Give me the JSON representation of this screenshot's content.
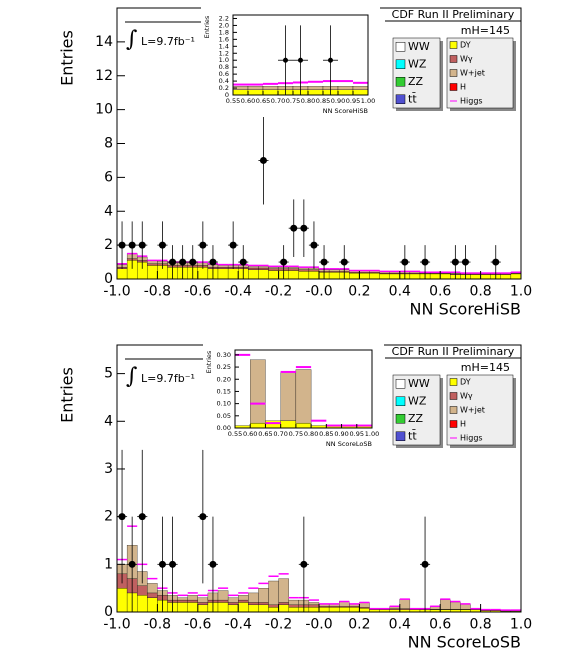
{
  "chart_data": [
    {
      "type": "histogram",
      "xlabel": "NN ScoreHiSB",
      "ylabel": "Entries",
      "annotations": [
        "CDF Run II Preliminary",
        "mH=145",
        "∫",
        "L=9.7fb⁻¹"
      ],
      "xlim": [
        -1,
        1
      ],
      "ylim": [
        0,
        16
      ],
      "xticks": [
        {
          "value": -1,
          "label": "-1.0"
        },
        -0.8,
        -0.6,
        -0.4,
        -0.2,
        {
          "value": 0,
          "label": "-0.0"
        },
        0.2,
        0.4,
        0.6,
        0.8,
        {
          "value": 1,
          "label": "1.0"
        }
      ],
      "yticks": [
        0,
        2,
        4,
        6,
        8,
        10,
        12,
        14
      ],
      "bins": [
        -1,
        -0.95,
        -0.9,
        -0.85,
        -0.8,
        -0.75,
        -0.7,
        -0.65,
        -0.6,
        -0.55,
        -0.5,
        -0.45,
        -0.4,
        -0.35,
        -0.3,
        -0.25,
        -0.2,
        -0.15,
        -0.1,
        -0.05,
        0,
        0.05,
        0.1,
        0.15,
        0.2,
        0.25,
        0.3,
        0.35,
        0.4,
        0.45,
        0.5,
        0.55,
        0.6,
        0.65,
        0.7,
        0.75,
        0.8,
        0.85,
        0.9,
        0.95,
        1
      ],
      "series": [
        {
          "name": "WW",
          "color": "#ffffff"
        },
        {
          "name": "WZ",
          "color": "#00ffff"
        },
        {
          "name": "ZZ",
          "color": "#33cc33"
        },
        {
          "name": "tt̄",
          "color": "#5050d0"
        },
        {
          "name": "DY",
          "color": "#ffff00",
          "values": [
            0.6,
            1.1,
            1.0,
            0.8,
            0.8,
            0.7,
            0.7,
            0.7,
            0.7,
            0.6,
            0.6,
            0.6,
            0.6,
            0.55,
            0.55,
            0.5,
            0.5,
            0.5,
            0.45,
            0.45,
            0.4,
            0.4,
            0.4,
            0.35,
            0.35,
            0.35,
            0.3,
            0.3,
            0.3,
            0.3,
            0.3,
            0.3,
            0.3,
            0.25,
            0.25,
            0.25,
            0.25,
            0.25,
            0.25,
            0.3
          ]
        },
        {
          "name": "Wγ",
          "color": "#c06060",
          "values": [
            0.1,
            0.1,
            0.1,
            0.1,
            0.1,
            0.1,
            0.1,
            0.1,
            0.1,
            0.1,
            0.1,
            0.1,
            0.1,
            0.1,
            0.1,
            0.1,
            0.1,
            0.1,
            0.1,
            0.1,
            0.05,
            0.05,
            0.05,
            0.05,
            0.05,
            0.05,
            0.05,
            0.05,
            0.05,
            0.05,
            0.05,
            0.05,
            0.05,
            0.05,
            0.05,
            0.05,
            0.05,
            0.05,
            0.05,
            0.05
          ]
        },
        {
          "name": "W+jet",
          "color": "#d2b48c",
          "values": [
            0.15,
            0.3,
            0.2,
            0.2,
            0.15,
            0.15,
            0.15,
            0.15,
            0.15,
            0.15,
            0.1,
            0.1,
            0.1,
            0.1,
            0.1,
            0.1,
            0.1,
            0.1,
            0.1,
            0.1,
            0.1,
            0.1,
            0.1,
            0.1,
            0.1,
            0.1,
            0.1,
            0.1,
            0.1,
            0.1,
            0.05,
            0.05,
            0.05,
            0.05,
            0.05,
            0.05,
            0.05,
            0.05,
            0.05,
            0.05
          ]
        },
        {
          "name": "H",
          "color": "#ff0000"
        },
        {
          "name": "Higgs",
          "color": "#ff00ff",
          "style": "line",
          "values": [
            0.9,
            1.5,
            1.35,
            1.1,
            1.1,
            1.0,
            1.0,
            1.0,
            1.0,
            0.9,
            0.85,
            0.85,
            0.85,
            0.8,
            0.8,
            0.75,
            0.75,
            0.75,
            0.7,
            0.7,
            0.6,
            0.6,
            0.6,
            0.5,
            0.5,
            0.5,
            0.45,
            0.45,
            0.45,
            0.45,
            0.4,
            0.4,
            0.4,
            0.4,
            0.35,
            0.35,
            0.35,
            0.35,
            0.35,
            0.4
          ]
        }
      ],
      "data_x": [
        -0.975,
        -0.925,
        -0.875,
        -0.775,
        -0.725,
        -0.675,
        -0.625,
        -0.575,
        -0.525,
        -0.425,
        -0.375,
        -0.275,
        -0.175,
        -0.125,
        -0.075,
        -0.025,
        0.025,
        0.125,
        0.425,
        0.525,
        0.675,
        0.725,
        0.875
      ],
      "data_values": [
        2,
        2,
        2,
        2,
        1,
        1,
        1,
        2,
        1,
        2,
        1,
        7,
        1,
        3,
        3,
        2,
        1,
        1,
        1,
        1,
        1,
        1,
        1
      ],
      "data_errors": [
        1.4,
        1.4,
        1.4,
        1.4,
        1,
        1,
        1,
        1.4,
        1,
        1.4,
        1,
        2.6,
        1,
        1.7,
        1.7,
        1.4,
        1,
        1,
        1,
        1,
        1,
        1,
        1
      ]
    },
    {
      "type": "histogram",
      "xlabel": "NN ScoreHiSB",
      "ylabel": "Entries",
      "xlim": [
        0.55,
        1.0
      ],
      "ylim": [
        0,
        2.3
      ],
      "xticks": [
        0.55,
        {
          "value": 0.6,
          "label": "0.60"
        },
        0.65,
        {
          "value": 0.7,
          "label": "0.70"
        },
        0.75,
        {
          "value": 0.8,
          "label": "0.80"
        },
        0.85,
        {
          "value": 0.9,
          "label": "0.90"
        },
        0.95,
        {
          "value": 1,
          "label": "1.00"
        }
      ],
      "yticks": [
        0,
        0.2,
        0.4,
        0.6,
        0.8,
        {
          "value": 1,
          "label": "1.0"
        },
        1.2,
        1.4,
        1.6,
        1.8,
        {
          "value": 2,
          "label": "2.0"
        },
        2.2
      ],
      "bins": [
        0.55,
        0.6,
        0.65,
        0.7,
        0.75,
        0.8,
        0.85,
        0.9,
        0.95,
        1.0
      ],
      "series": [
        {
          "color": "#ffff00",
          "values": [
            0.15,
            0.15,
            0.15,
            0.15,
            0.15,
            0.15,
            0.15,
            0.15,
            0.15
          ]
        },
        {
          "color": "#d2b48c",
          "values": [
            0.1,
            0.1,
            0.1,
            0.1,
            0.1,
            0.1,
            0.1,
            0.1,
            0.1
          ]
        },
        {
          "color": "#ff00ff",
          "style": "line",
          "values": [
            0.3,
            0.3,
            0.32,
            0.34,
            0.36,
            0.38,
            0.4,
            0.4,
            0.35
          ]
        }
      ],
      "data_x": [
        0.725,
        0.775,
        0.875
      ],
      "data_values": [
        1,
        1,
        1
      ],
      "data_errors": [
        1,
        1,
        1
      ]
    },
    {
      "type": "histogram",
      "xlabel": "NN ScoreLoSB",
      "ylabel": "Entries",
      "annotations": [
        "CDF Run II Preliminary",
        "mH=145",
        "∫",
        "L=9.7fb⁻¹"
      ],
      "xlim": [
        -1,
        1
      ],
      "ylim": [
        0,
        5.6
      ],
      "xticks": [
        {
          "value": -1,
          "label": "-1.0"
        },
        -0.8,
        -0.6,
        -0.4,
        -0.2,
        {
          "value": 0,
          "label": "-0.0"
        },
        0.2,
        0.4,
        0.6,
        0.8,
        {
          "value": 1,
          "label": "1.0"
        }
      ],
      "yticks": [
        0,
        1,
        2,
        3,
        4,
        5
      ],
      "bins": [
        -1,
        -0.95,
        -0.9,
        -0.85,
        -0.8,
        -0.75,
        -0.7,
        -0.65,
        -0.6,
        -0.55,
        -0.5,
        -0.45,
        -0.4,
        -0.35,
        -0.3,
        -0.25,
        -0.2,
        -0.15,
        -0.1,
        -0.05,
        0,
        0.05,
        0.1,
        0.15,
        0.2,
        0.25,
        0.3,
        0.35,
        0.4,
        0.45,
        0.5,
        0.55,
        0.6,
        0.65,
        0.7,
        0.75,
        0.8,
        0.85,
        0.9,
        0.95,
        1
      ],
      "series": [
        {
          "name": "WW",
          "color": "#ffffff"
        },
        {
          "name": "WZ",
          "color": "#00ffff"
        },
        {
          "name": "ZZ",
          "color": "#33cc33"
        },
        {
          "name": "tt̄",
          "color": "#5050d0"
        },
        {
          "name": "DY",
          "color": "#ffff00",
          "values": [
            0.5,
            0.4,
            0.35,
            0.3,
            0.25,
            0.2,
            0.2,
            0.2,
            0.15,
            0.2,
            0.2,
            0.15,
            0.2,
            0.15,
            0.15,
            0.1,
            0.15,
            0.1,
            0.1,
            0.1,
            0.1,
            0.1,
            0.1,
            0.1,
            0.08,
            0.05,
            0.05,
            0.05,
            0.05,
            0.05,
            0.05,
            0.05,
            0.05,
            0.05,
            0.05,
            0.05,
            0.03,
            0.03,
            0.02,
            0.02
          ]
        },
        {
          "name": "Wγ",
          "color": "#c06060",
          "values": [
            0.3,
            0.3,
            0.2,
            0.1,
            0.1,
            0.05,
            0.05,
            0.05,
            0.05,
            0.05,
            0.05,
            0.05,
            0.05,
            0.05,
            0.05,
            0.05,
            0.05,
            0.05,
            0.05,
            0.05,
            0.02,
            0.02,
            0.02,
            0.02,
            0.02,
            0.02,
            0.02,
            0.02,
            0.02,
            0.02,
            0.01,
            0.01,
            0.01,
            0.01,
            0.01,
            0.01,
            0.01,
            0.01,
            0.01,
            0.01
          ]
        },
        {
          "name": "W+jet",
          "color": "#d2b48c",
          "values": [
            0.2,
            0.7,
            0.3,
            0.2,
            0.1,
            0.1,
            0.05,
            0.1,
            0.1,
            0.15,
            0.2,
            0.1,
            0.1,
            0.2,
            0.3,
            0.5,
            0.5,
            0.1,
            0.1,
            0.05,
            0.05,
            0.05,
            0.1,
            0.05,
            0.1,
            0,
            0,
            0.05,
            0.2,
            0,
            0,
            0.05,
            0.2,
            0.15,
            0.1,
            0,
            0,
            0,
            0,
            0
          ]
        },
        {
          "name": "H",
          "color": "#ff0000"
        },
        {
          "name": "Higgs",
          "color": "#ff00ff",
          "style": "line",
          "values": [
            1.1,
            1.8,
            1.0,
            0.7,
            0.5,
            0.4,
            0.35,
            0.4,
            0.35,
            0.45,
            0.5,
            0.35,
            0.4,
            0.5,
            0.6,
            0.75,
            0.8,
            0.3,
            0.3,
            0.25,
            0.17,
            0.17,
            0.22,
            0.17,
            0.2,
            0.07,
            0.07,
            0.12,
            0.27,
            0.07,
            0.07,
            0.12,
            0.27,
            0.22,
            0.17,
            0.07,
            0.05,
            0.05,
            0.04,
            0.04
          ]
        }
      ],
      "data_x": [
        -0.975,
        -0.925,
        -0.875,
        -0.775,
        -0.725,
        -0.575,
        -0.525,
        -0.075,
        0.525
      ],
      "data_values": [
        2,
        1,
        2,
        1,
        1,
        2,
        1,
        1,
        1
      ],
      "data_errors": [
        1.4,
        1,
        1.4,
        1,
        1,
        1.4,
        1,
        1,
        1
      ]
    },
    {
      "type": "histogram",
      "xlabel": "NN ScoreLoSB",
      "ylabel": "Entries",
      "xlim": [
        0.55,
        1.0
      ],
      "ylim": [
        0,
        0.32
      ],
      "xticks": [
        0.55,
        {
          "value": 0.6,
          "label": "0.60"
        },
        0.65,
        {
          "value": 0.7,
          "label": "0.70"
        },
        0.75,
        {
          "value": 0.8,
          "label": "0.80"
        },
        0.85,
        {
          "value": 0.9,
          "label": "0.90"
        },
        0.95,
        {
          "value": 1,
          "label": "1.00"
        }
      ],
      "yticks": [
        {
          "value": 0,
          "label": "0.00"
        },
        0.05,
        {
          "value": 0.1,
          "label": "0.10"
        },
        0.15,
        {
          "value": 0.2,
          "label": "0.20"
        },
        0.25,
        {
          "value": 0.3,
          "label": "0.30"
        }
      ],
      "bins": [
        0.55,
        0.6,
        0.65,
        0.7,
        0.75,
        0.8,
        0.85,
        0.9,
        0.95,
        1.0
      ],
      "series": [
        {
          "color": "#ffff00",
          "values": [
            0.01,
            0.02,
            0.03,
            0.03,
            0.02,
            0.01,
            0.01,
            0.01,
            0.01
          ]
        },
        {
          "color": "#d2b48c",
          "values": [
            0,
            0.26,
            0,
            0.2,
            0.22,
            0,
            0,
            0,
            0
          ]
        },
        {
          "color": "#ff00ff",
          "style": "line",
          "values": [
            0.3,
            0.1,
            0.02,
            0.23,
            0.25,
            0.03,
            0.01,
            0.01,
            0.01
          ]
        }
      ],
      "data_x": [],
      "data_values": [],
      "data_errors": []
    }
  ]
}
